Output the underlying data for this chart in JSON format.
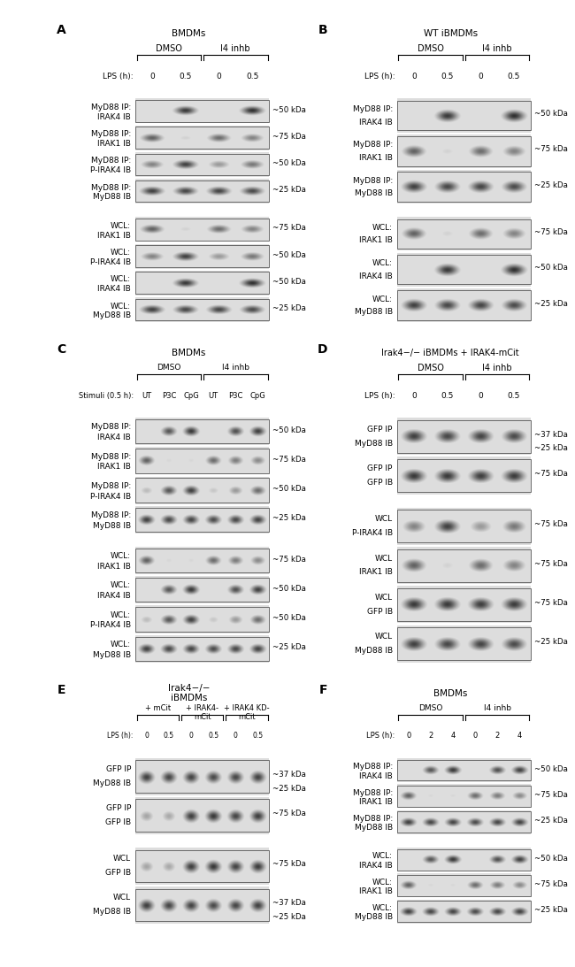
{
  "figure_bg": "#ffffff",
  "panel_A": {
    "label": "A",
    "title": "BMDMs",
    "header": {
      "groups": [
        "DMSO",
        "I4 inhb"
      ],
      "lanes": [
        "0",
        "0.5",
        "0",
        "0.5"
      ],
      "row_label": "LPS (h):"
    },
    "blots": [
      {
        "label1": "MyD88 IP:",
        "label2": "IRAK4 IB",
        "kda": "~50 kDa",
        "type": "IP"
      },
      {
        "label1": "MyD88 IP:",
        "label2": "IRAK1 IB",
        "kda": "~75 kDa",
        "type": "IP"
      },
      {
        "label1": "MyD88 IP:",
        "label2": "P-IRAK4 IB",
        "kda": "~50 kDa",
        "type": "IP"
      },
      {
        "label1": "MyD88 IP:",
        "label2": "MyD88 IB",
        "kda": "~25 kDa",
        "type": "IP"
      },
      {
        "label1": "WCL:",
        "label2": "IRAK1 IB",
        "kda": "~75 kDa",
        "type": "WCL"
      },
      {
        "label1": "WCL:",
        "label2": "P-IRAK4 IB",
        "kda": "~50 kDa",
        "type": "WCL"
      },
      {
        "label1": "WCL:",
        "label2": "IRAK4 IB",
        "kda": "~50 kDa",
        "type": "WCL"
      },
      {
        "label1": "WCL:",
        "label2": "MyD88 IB",
        "kda": "~25 kDa",
        "type": "WCL"
      }
    ]
  },
  "panel_B": {
    "label": "B",
    "title": "WT iBMDMs",
    "header": {
      "groups": [
        "DMSO",
        "I4 inhb"
      ],
      "lanes": [
        "0",
        "0.5",
        "0",
        "0.5"
      ],
      "row_label": "LPS (h):"
    },
    "blots": [
      {
        "label1": "MyD88 IP:",
        "label2": "IRAK4 IB",
        "kda": "~50 kDa",
        "type": "IP"
      },
      {
        "label1": "MyD88 IP:",
        "label2": "IRAK1 IB",
        "kda": "~75 kDa",
        "type": "IP"
      },
      {
        "label1": "MyD88 IP:",
        "label2": "MyD88 IB",
        "kda": "~25 kDa",
        "type": "IP"
      },
      {
        "label1": "WCL:",
        "label2": "IRAK1 IB",
        "kda": "~75 kDa",
        "type": "WCL"
      },
      {
        "label1": "WCL:",
        "label2": "IRAK4 IB",
        "kda": "~50 kDa",
        "type": "WCL"
      },
      {
        "label1": "WCL:",
        "label2": "MyD88 IB",
        "kda": "~25 kDa",
        "type": "WCL"
      }
    ]
  },
  "panel_C": {
    "label": "C",
    "title": "BMDMs",
    "header": {
      "groups": [
        "DMSO",
        "I4 inhb"
      ],
      "lanes": [
        "UT",
        "P3C",
        "CpG",
        "UT",
        "P3C",
        "CpG"
      ],
      "row_label": "Stimuli (0.5 h):"
    },
    "blots": [
      {
        "label1": "MyD88 IP:",
        "label2": "IRAK4 IB",
        "kda": "~50 kDa",
        "type": "IP"
      },
      {
        "label1": "MyD88 IP:",
        "label2": "IRAK1 IB",
        "kda": "~75 kDa",
        "type": "IP"
      },
      {
        "label1": "MyD88 IP:",
        "label2": "P-IRAK4 IB",
        "kda": "~50 kDa",
        "type": "IP"
      },
      {
        "label1": "MyD88 IP:",
        "label2": "MyD88 IB",
        "kda": "~25 kDa",
        "type": "IP"
      },
      {
        "label1": "WCL:",
        "label2": "IRAK1 IB",
        "kda": "~75 kDa",
        "type": "WCL"
      },
      {
        "label1": "WCL:",
        "label2": "IRAK4 IB",
        "kda": "~50 kDa",
        "type": "WCL"
      },
      {
        "label1": "WCL:",
        "label2": "P-IRAK4 IB",
        "kda": "~50 kDa",
        "type": "WCL"
      },
      {
        "label1": "WCL:",
        "label2": "MyD88 IB",
        "kda": "~25 kDa",
        "type": "WCL"
      }
    ]
  },
  "panel_D": {
    "label": "D",
    "title": "Irak4−/− iBMDMs + IRAK4-mCit",
    "title_italic": "Irak4−/−",
    "header": {
      "groups": [
        "DMSO",
        "I4 inhb"
      ],
      "lanes": [
        "0",
        "0.5",
        "0",
        "0.5"
      ],
      "row_label": "LPS (h):"
    },
    "blots": [
      {
        "label1": "GFP IP",
        "label2": "MyD88 IB",
        "kda": "~37 kDa",
        "kda2": "~25 kDa",
        "type": "IP"
      },
      {
        "label1": "GFP IP",
        "label2": "GFP IB",
        "kda": "~75 kDa",
        "type": "IP"
      },
      {
        "label1": "WCL",
        "label2": "P-IRAK4 IB",
        "kda": "~75 kDa",
        "type": "WCL"
      },
      {
        "label1": "WCL",
        "label2": "IRAK1 IB",
        "kda": "~75 kDa",
        "type": "WCL"
      },
      {
        "label1": "WCL",
        "label2": "GFP IB",
        "kda": "~75 kDa",
        "type": "WCL"
      },
      {
        "label1": "WCL",
        "label2": "MyD88 IB",
        "kda": "~25 kDa",
        "type": "WCL"
      }
    ]
  },
  "panel_E": {
    "label": "E",
    "title": "Irak4−/−\niBMDMs",
    "header": {
      "groups": [
        "+ mCit",
        "+ IRAK4-\nmCit",
        "+ IRAK4 KD-\nmCit"
      ],
      "lanes": [
        "0",
        "0.5",
        "0",
        "0.5",
        "0",
        "0.5"
      ],
      "row_label": "LPS (h):"
    },
    "blots": [
      {
        "label1": "GFP IP",
        "label2": "MyD88 IB",
        "kda": "~37 kDa",
        "kda2": "~25 kDa",
        "type": "IP"
      },
      {
        "label1": "GFP IP",
        "label2": "GFP IB",
        "kda": "~75 kDa",
        "type": "IP"
      },
      {
        "label1": "WCL",
        "label2": "GFP IB",
        "kda": "~75 kDa",
        "type": "WCL"
      },
      {
        "label1": "WCL",
        "label2": "MyD88 IB",
        "kda": "~37 kDa",
        "kda2": "~25 kDa",
        "type": "WCL"
      }
    ]
  },
  "panel_F": {
    "label": "F",
    "title": "BMDMs",
    "header": {
      "groups": [
        "DMSO",
        "I4 inhb"
      ],
      "lanes": [
        "0",
        "2",
        "4",
        "0",
        "2",
        "4"
      ],
      "row_label": "LPS (h):"
    },
    "blots": [
      {
        "label1": "MyD88 IP:",
        "label2": "IRAK4 IB",
        "kda": "~50 kDa",
        "type": "IP"
      },
      {
        "label1": "MyD88 IP:",
        "label2": "IRAK1 IB",
        "kda": "~75 kDa",
        "type": "IP"
      },
      {
        "label1": "MyD88 IP:",
        "label2": "MyD88 IB",
        "kda": "~25 kDa",
        "type": "IP"
      },
      {
        "label1": "WCL:",
        "label2": "IRAK4 IB",
        "kda": "~50 kDa",
        "type": "WCL"
      },
      {
        "label1": "WCL:",
        "label2": "IRAK1 IB",
        "kda": "~75 kDa",
        "type": "WCL"
      },
      {
        "label1": "WCL:",
        "label2": "MyD88 IB",
        "kda": "~25 kDa",
        "type": "WCL"
      }
    ]
  }
}
